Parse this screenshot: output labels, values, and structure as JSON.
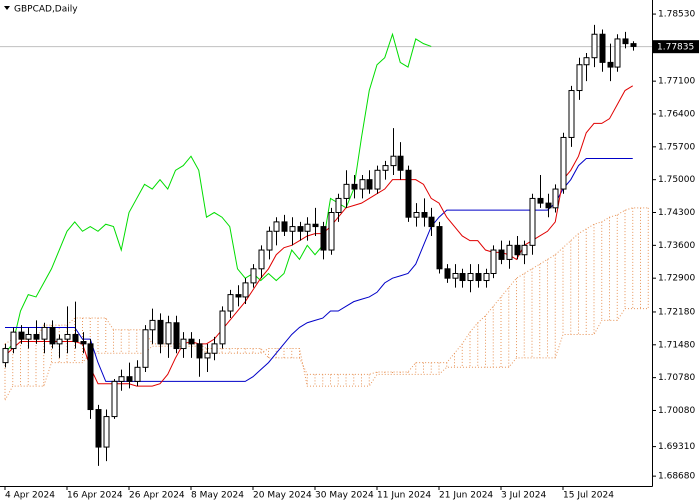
{
  "chart_data": {
    "type": "candlestick",
    "title": "GBPCAD,Daily",
    "categories": [
      "4 Apr 2024",
      null,
      null,
      null,
      null,
      null,
      null,
      null,
      "16 Apr 2024",
      null,
      null,
      null,
      null,
      null,
      null,
      null,
      "26 Apr 2024",
      null,
      null,
      null,
      null,
      null,
      null,
      null,
      "8 May 2024",
      null,
      null,
      null,
      null,
      null,
      null,
      null,
      "20 May 2024",
      null,
      null,
      null,
      null,
      null,
      null,
      null,
      "30 May 2024",
      null,
      null,
      null,
      null,
      null,
      null,
      null,
      "11 Jun 2024",
      null,
      null,
      null,
      null,
      null,
      null,
      null,
      "21 Jun 2024",
      null,
      null,
      null,
      null,
      null,
      null,
      null,
      "3 Jul 2024",
      null,
      null,
      null,
      null,
      null,
      null,
      null,
      "15 Jul 2024",
      null,
      null,
      null,
      null,
      null,
      null,
      null,
      null,
      null,
      null,
      null
    ],
    "ylim": [
      1.6847,
      1.7883
    ],
    "yticks": [
      {
        "value": 1.7853,
        "label": "1.78530"
      },
      {
        "value": 1.771,
        "label": "1.77100"
      },
      {
        "value": 1.764,
        "label": "1.76400"
      },
      {
        "value": 1.757,
        "label": "1.75700"
      },
      {
        "value": 1.75,
        "label": "1.75000"
      },
      {
        "value": 1.743,
        "label": "1.74300"
      },
      {
        "value": 1.736,
        "label": "1.73600"
      },
      {
        "value": 1.729,
        "label": "1.72900"
      },
      {
        "value": 1.7218,
        "label": "1.72180"
      },
      {
        "value": 1.7148,
        "label": "1.71480"
      },
      {
        "value": 1.7078,
        "label": "1.70780"
      },
      {
        "value": 1.7008,
        "label": "1.70080"
      },
      {
        "value": 1.6931,
        "label": "1.69310"
      },
      {
        "value": 1.6868,
        "label": "1.68680"
      }
    ],
    "current_price": {
      "value": 1.77835,
      "label": "1.77835"
    },
    "series": [
      {
        "type": "span",
        "color": "#e8955a",
        "values": [
          1.715,
          1.716,
          1.716,
          1.716,
          1.716,
          1.719,
          1.719,
          1.719,
          1.719,
          1.7205,
          1.7205,
          1.7205,
          1.7205,
          1.7205,
          1.718,
          1.718,
          1.718,
          1.718,
          1.718,
          1.715,
          1.715,
          1.715,
          1.715,
          1.715,
          1.715,
          1.715,
          1.714,
          1.714,
          1.714,
          1.714,
          1.714,
          1.714,
          1.714,
          1.714,
          1.712,
          1.712,
          1.712,
          1.712,
          1.712,
          1.7085,
          1.7085,
          1.7085,
          1.7085,
          1.7085,
          1.7085,
          1.7085,
          1.7085,
          1.7085,
          1.709,
          1.709,
          1.709,
          1.709,
          1.709,
          1.711,
          1.711,
          1.711,
          1.711,
          1.711,
          1.713,
          1.715,
          1.7175,
          1.7195,
          1.721,
          1.723,
          1.725,
          1.727,
          1.729,
          1.73,
          1.731,
          1.732,
          1.733,
          1.734,
          1.7355,
          1.737,
          1.7385,
          1.7395,
          1.7405,
          1.741,
          1.742,
          1.7425,
          1.7435,
          1.744,
          1.744,
          1.744
        ]
      },
      {
        "type": "span",
        "color": "#e8955a",
        "values": [
          1.703,
          1.706,
          1.706,
          1.706,
          1.706,
          1.706,
          1.711,
          1.711,
          1.711,
          1.711,
          1.711,
          1.713,
          1.713,
          1.713,
          1.713,
          1.713,
          1.713,
          1.713,
          1.713,
          1.7145,
          1.7145,
          1.7145,
          1.7145,
          1.7145,
          1.7145,
          1.7145,
          1.713,
          1.713,
          1.713,
          1.713,
          1.713,
          1.713,
          1.713,
          1.713,
          1.714,
          1.714,
          1.714,
          1.714,
          1.714,
          1.706,
          1.706,
          1.706,
          1.706,
          1.706,
          1.706,
          1.706,
          1.706,
          1.706,
          1.7085,
          1.7085,
          1.7085,
          1.7085,
          1.7085,
          1.7085,
          1.7085,
          1.7085,
          1.7085,
          1.71,
          1.71,
          1.71,
          1.71,
          1.71,
          1.71,
          1.71,
          1.71,
          1.71,
          1.712,
          1.712,
          1.712,
          1.712,
          1.712,
          1.712,
          1.717,
          1.717,
          1.717,
          1.717,
          1.717,
          1.72,
          1.72,
          1.72,
          1.7225,
          1.7225,
          1.7225,
          1.7225
        ]
      },
      {
        "type": "line",
        "color": "#00dd00",
        "values": [
          1.713,
          1.715,
          1.722,
          1.7255,
          1.725,
          1.728,
          1.731,
          1.735,
          1.739,
          1.741,
          1.739,
          1.74,
          1.739,
          1.7405,
          1.74,
          1.735,
          1.743,
          1.746,
          1.749,
          1.748,
          1.75,
          1.748,
          1.752,
          1.753,
          1.755,
          1.752,
          1.742,
          1.743,
          1.742,
          1.74,
          1.731,
          1.729,
          1.73,
          1.7285,
          1.73,
          1.7285,
          1.73,
          1.735,
          1.733,
          1.736,
          1.734,
          1.736,
          1.746,
          1.745,
          1.744,
          1.748,
          1.759,
          1.769,
          1.7745,
          1.776,
          1.781,
          1.775,
          1.774,
          1.78,
          1.779,
          1.7784,
          null,
          null,
          null,
          null,
          null,
          null,
          null,
          null,
          null,
          null,
          null,
          null,
          null,
          null,
          null,
          null,
          null,
          null,
          null,
          null,
          null,
          null,
          null,
          null,
          null,
          null,
          null,
          null
        ]
      },
      {
        "type": "line",
        "color": "#0000c8",
        "values": [
          1.7185,
          1.7185,
          1.7185,
          1.7185,
          1.7185,
          1.7185,
          1.7185,
          1.7185,
          1.7185,
          1.7185,
          1.716,
          1.716,
          1.711,
          1.707,
          1.707,
          1.707,
          1.707,
          1.707,
          1.707,
          1.707,
          1.707,
          1.707,
          1.707,
          1.707,
          1.707,
          1.707,
          1.707,
          1.707,
          1.707,
          1.707,
          1.707,
          1.707,
          1.708,
          1.7095,
          1.711,
          1.713,
          1.715,
          1.717,
          1.7185,
          1.7195,
          1.72,
          1.7205,
          1.722,
          1.722,
          1.723,
          1.724,
          1.7245,
          1.725,
          1.726,
          1.728,
          1.729,
          1.7295,
          1.73,
          1.732,
          1.736,
          1.74,
          1.742,
          1.7435,
          1.7435,
          1.7435,
          1.7435,
          1.7435,
          1.7435,
          1.7435,
          1.7435,
          1.7435,
          1.7435,
          1.7435,
          1.7435,
          1.7435,
          1.7435,
          1.745,
          1.748,
          1.75,
          1.753,
          1.7545,
          1.7545,
          1.7545,
          1.7545,
          1.7545,
          1.7545,
          1.7545,
          null,
          null
        ]
      },
      {
        "type": "line",
        "color": "#e00000",
        "values": [
          1.7125,
          1.714,
          1.7155,
          1.7155,
          1.7155,
          1.7155,
          1.7155,
          1.7155,
          1.7155,
          1.7155,
          1.715,
          1.71,
          1.7065,
          1.7065,
          1.7065,
          1.7065,
          1.7065,
          1.706,
          1.706,
          1.706,
          1.7065,
          1.7085,
          1.712,
          1.715,
          1.7155,
          1.715,
          1.715,
          1.716,
          1.718,
          1.72,
          1.722,
          1.724,
          1.7265,
          1.729,
          1.731,
          1.734,
          1.7355,
          1.736,
          1.737,
          1.738,
          1.7385,
          1.7385,
          1.74,
          1.742,
          1.744,
          1.7445,
          1.745,
          1.746,
          1.747,
          1.748,
          1.75,
          1.75,
          1.75,
          1.75,
          1.749,
          1.746,
          1.745,
          1.742,
          1.74,
          1.738,
          1.737,
          1.737,
          1.735,
          1.7345,
          1.7345,
          1.734,
          1.733,
          1.736,
          1.737,
          1.738,
          1.739,
          1.741,
          1.75,
          1.752,
          1.755,
          1.76,
          1.762,
          1.762,
          1.763,
          1.766,
          1.769,
          1.77,
          null,
          null
        ]
      },
      {
        "type": "candlestick",
        "color": "#000000",
        "values": [
          [
            1.711,
            1.715,
            1.71,
            1.714
          ],
          [
            1.714,
            1.7185,
            1.713,
            1.7175
          ],
          [
            1.7175,
            1.719,
            1.715,
            1.716
          ],
          [
            1.716,
            1.7185,
            1.714,
            1.717
          ],
          [
            1.717,
            1.72,
            1.715,
            1.716
          ],
          [
            1.716,
            1.7195,
            1.713,
            1.7185
          ],
          [
            1.7185,
            1.72,
            1.714,
            1.715
          ],
          [
            1.715,
            1.717,
            1.712,
            1.716
          ],
          [
            1.716,
            1.723,
            1.713,
            1.717
          ],
          [
            1.717,
            1.724,
            1.714,
            1.7155
          ],
          [
            1.7155,
            1.7175,
            1.713,
            1.715
          ],
          [
            1.715,
            1.716,
            1.699,
            1.701
          ],
          [
            1.701,
            1.702,
            1.689,
            1.693
          ],
          [
            1.693,
            1.701,
            1.69,
            1.6995
          ],
          [
            1.6995,
            1.7075,
            1.699,
            1.707
          ],
          [
            1.707,
            1.7095,
            1.705,
            1.708
          ],
          [
            1.708,
            1.711,
            1.7055,
            1.707
          ],
          [
            1.707,
            1.7115,
            1.706,
            1.71
          ],
          [
            1.71,
            1.719,
            1.709,
            1.718
          ],
          [
            1.718,
            1.7225,
            1.715,
            1.72
          ],
          [
            1.72,
            1.7215,
            1.713,
            1.715
          ],
          [
            1.715,
            1.721,
            1.712,
            1.7195
          ],
          [
            1.7195,
            1.721,
            1.713,
            1.714
          ],
          [
            1.714,
            1.7175,
            1.712,
            1.716
          ],
          [
            1.716,
            1.7175,
            1.712,
            1.715
          ],
          [
            1.715,
            1.716,
            1.708,
            1.712
          ],
          [
            1.712,
            1.715,
            1.709,
            1.713
          ],
          [
            1.713,
            1.7165,
            1.7115,
            1.715
          ],
          [
            1.715,
            1.723,
            1.714,
            1.722
          ],
          [
            1.722,
            1.7265,
            1.7205,
            1.7255
          ],
          [
            1.7255,
            1.7275,
            1.723,
            1.725
          ],
          [
            1.725,
            1.729,
            1.7235,
            1.728
          ],
          [
            1.728,
            1.732,
            1.727,
            1.731
          ],
          [
            1.731,
            1.736,
            1.729,
            1.735
          ],
          [
            1.735,
            1.74,
            1.733,
            1.739
          ],
          [
            1.739,
            1.742,
            1.736,
            1.741
          ],
          [
            1.741,
            1.7425,
            1.738,
            1.739
          ],
          [
            1.739,
            1.742,
            1.736,
            1.74
          ],
          [
            1.74,
            1.741,
            1.737,
            1.739
          ],
          [
            1.739,
            1.742,
            1.737,
            1.7405
          ],
          [
            1.7405,
            1.744,
            1.738,
            1.74
          ],
          [
            1.74,
            1.741,
            1.733,
            1.735
          ],
          [
            1.735,
            1.744,
            1.734,
            1.743
          ],
          [
            1.743,
            1.747,
            1.741,
            1.746
          ],
          [
            1.746,
            1.752,
            1.744,
            1.749
          ],
          [
            1.749,
            1.751,
            1.746,
            1.748
          ],
          [
            1.748,
            1.751,
            1.746,
            1.75
          ],
          [
            1.75,
            1.752,
            1.747,
            1.748
          ],
          [
            1.748,
            1.753,
            1.747,
            1.752
          ],
          [
            1.752,
            1.754,
            1.75,
            1.753
          ],
          [
            1.753,
            1.761,
            1.751,
            1.755
          ],
          [
            1.755,
            1.758,
            1.75,
            1.752
          ],
          [
            1.752,
            1.753,
            1.741,
            1.742
          ],
          [
            1.742,
            1.745,
            1.74,
            1.743
          ],
          [
            1.743,
            1.746,
            1.74,
            1.742
          ],
          [
            1.742,
            1.744,
            1.738,
            1.74
          ],
          [
            1.74,
            1.741,
            1.73,
            1.731
          ],
          [
            1.731,
            1.732,
            1.728,
            1.729
          ],
          [
            1.729,
            1.732,
            1.727,
            1.73
          ],
          [
            1.73,
            1.731,
            1.727,
            1.7285
          ],
          [
            1.7285,
            1.732,
            1.726,
            1.73
          ],
          [
            1.73,
            1.732,
            1.727,
            1.7285
          ],
          [
            1.7285,
            1.731,
            1.727,
            1.73
          ],
          [
            1.73,
            1.736,
            1.729,
            1.735
          ],
          [
            1.735,
            1.737,
            1.732,
            1.733
          ],
          [
            1.733,
            1.737,
            1.731,
            1.736
          ],
          [
            1.736,
            1.738,
            1.733,
            1.734
          ],
          [
            1.734,
            1.737,
            1.732,
            1.736
          ],
          [
            1.736,
            1.747,
            1.734,
            1.746
          ],
          [
            1.746,
            1.751,
            1.744,
            1.745
          ],
          [
            1.745,
            1.747,
            1.742,
            1.744
          ],
          [
            1.744,
            1.749,
            1.743,
            1.748
          ],
          [
            1.748,
            1.76,
            1.747,
            1.759
          ],
          [
            1.759,
            1.77,
            1.757,
            1.769
          ],
          [
            1.769,
            1.776,
            1.767,
            1.7745
          ],
          [
            1.7745,
            1.777,
            1.771,
            1.776
          ],
          [
            1.776,
            1.783,
            1.774,
            1.781
          ],
          [
            1.781,
            1.782,
            1.773,
            1.775
          ],
          [
            1.775,
            1.779,
            1.771,
            1.774
          ],
          [
            1.774,
            1.781,
            1.773,
            1.78
          ],
          [
            1.78,
            1.7815,
            1.778,
            1.779
          ],
          [
            1.779,
            1.7795,
            1.7775,
            1.7784
          ],
          null,
          null
        ]
      }
    ]
  }
}
